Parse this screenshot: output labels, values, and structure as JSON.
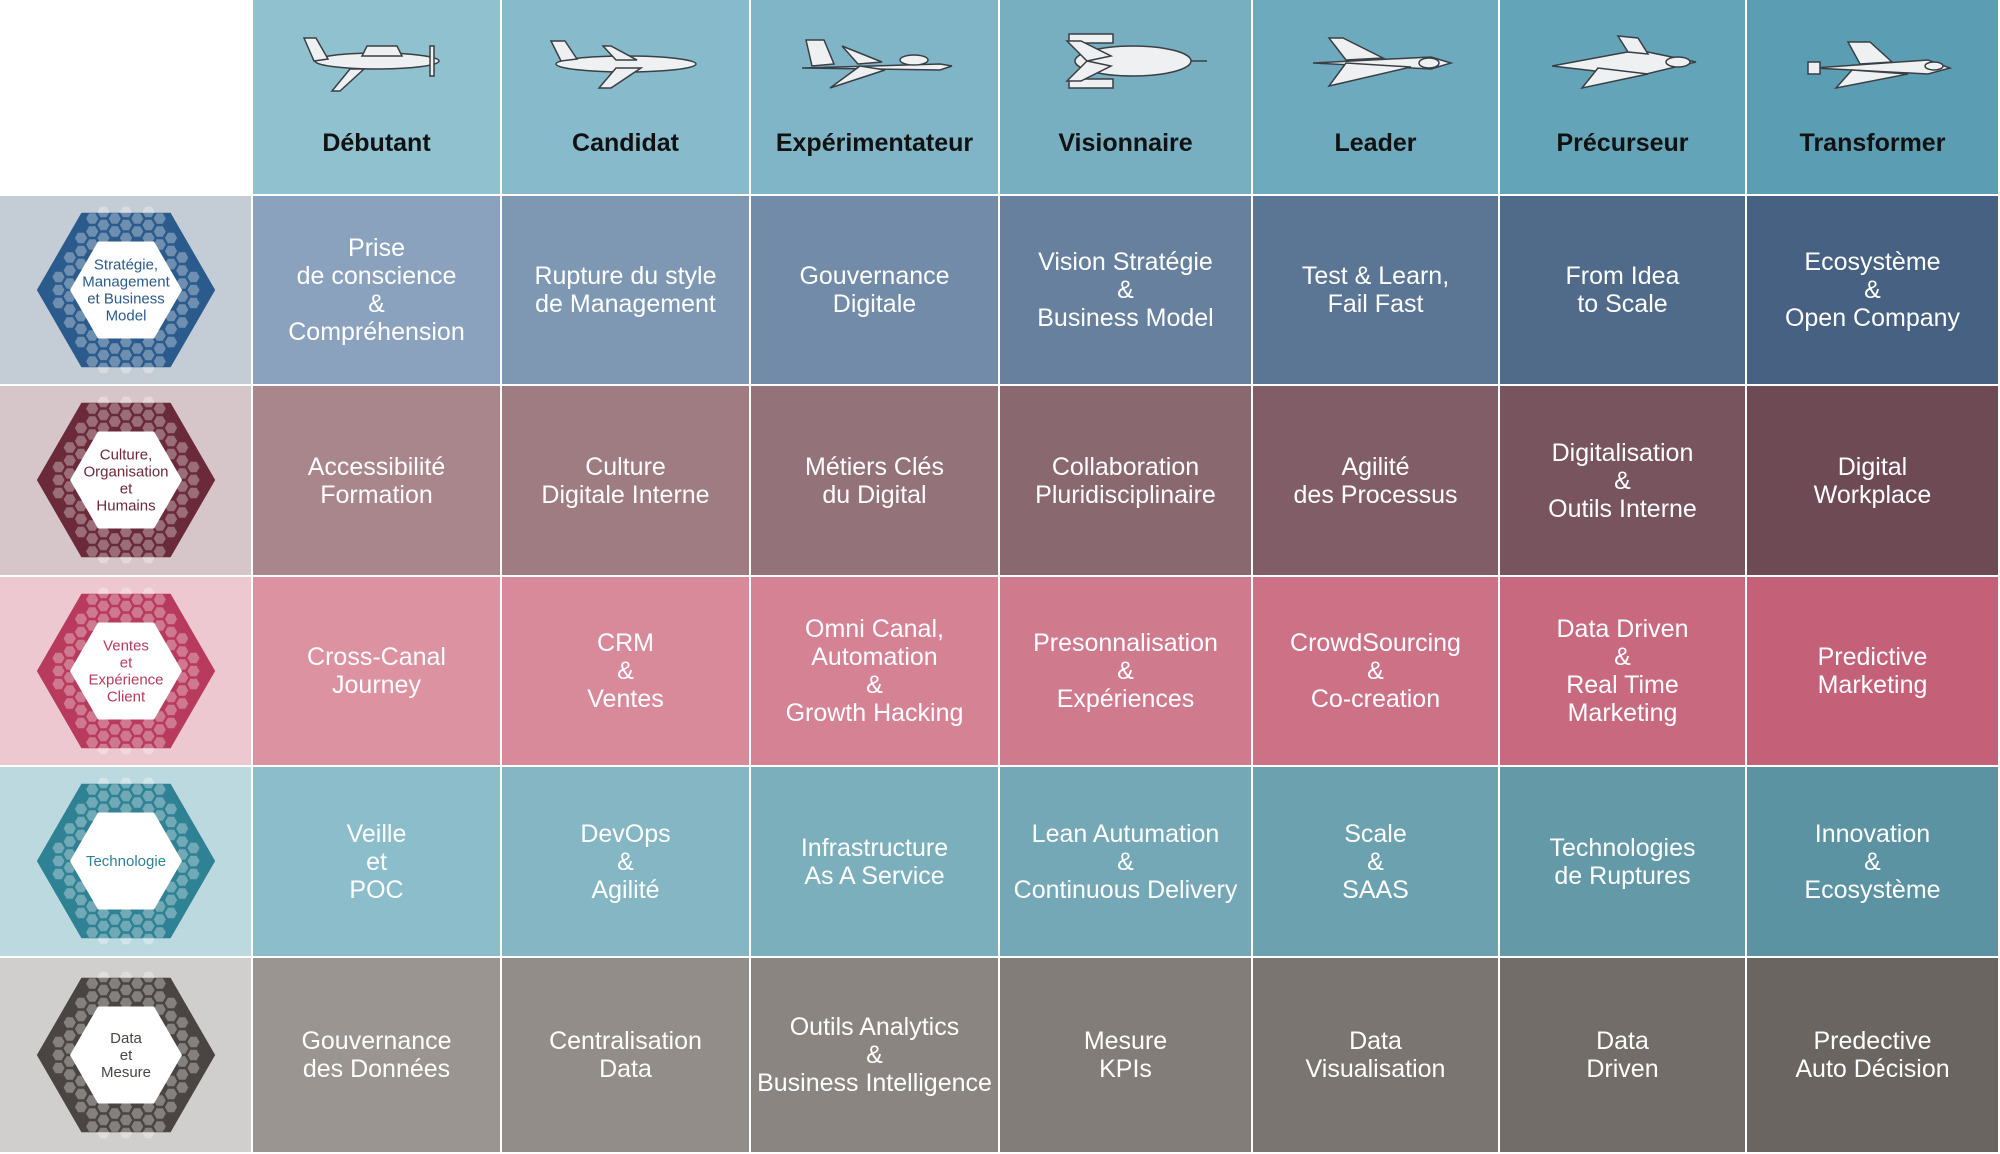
{
  "columns": [
    {
      "label": "Débutant",
      "icon": "light-aircraft-icon",
      "color": "#8fc1cf"
    },
    {
      "label": "Candidat",
      "icon": "airliner-icon",
      "color": "#87bbcb"
    },
    {
      "label": "Expérimentateur",
      "icon": "fighter-jet-icon",
      "color": "#7fb5c6"
    },
    {
      "label": "Visionnaire",
      "icon": "space-shuttle-stack-icon",
      "color": "#77afc1"
    },
    {
      "label": "Leader",
      "icon": "space-shuttle-icon",
      "color": "#6eaabd"
    },
    {
      "label": "Précurseur",
      "icon": "spaceplane-icon",
      "color": "#64a4b8"
    },
    {
      "label": "Transformer",
      "icon": "shuttle-orbiter-icon",
      "color": "#5b9eb3"
    }
  ],
  "rows": [
    {
      "label": "Stratégie,\nManagement\net Business\nModel",
      "label_bg": "#c4ccd6",
      "hex_color": "#2b5a8c",
      "colors": [
        "#8aa2bd",
        "#7e97b3",
        "#728ba8",
        "#66809e",
        "#5b7594",
        "#506b8a",
        "#466181"
      ],
      "cells": [
        "Prise\nde conscience\n&\nCompréhension",
        "Rupture du style\nde Management",
        "Gouvernance\nDigitale",
        "Vision Stratégie\n&\nBusiness Model",
        "Test & Learn,\nFail Fast",
        "From Idea\nto Scale",
        "Ecosystème\n&\nOpen Company"
      ]
    },
    {
      "label": "Culture,\nOrganisation\net\nHumains",
      "label_bg": "#d7c6c9",
      "hex_color": "#6a2a3a",
      "colors": [
        "#a8868b",
        "#9e7c82",
        "#947279",
        "#8a6870",
        "#815e67",
        "#77545e",
        "#6e4a55"
      ],
      "cells": [
        "Accessibilité\nFormation",
        "Culture\nDigitale Interne",
        "Métiers Clés\ndu Digital",
        "Collaboration\nPluridisciplinaire",
        "Agilité\ndes Processus",
        "Digitalisation\n&\nOutils Interne",
        "Digital\nWorkplace"
      ]
    },
    {
      "label": "Ventes\net\nExpérience\nClient",
      "label_bg": "#eec8d0",
      "hex_color": "#b83a5c",
      "colors": [
        "#dc92a1",
        "#d88a9b",
        "#d48294",
        "#d07a8d",
        "#cc7186",
        "#c8697f",
        "#c46078"
      ],
      "cells": [
        "Cross-Canal\nJourney",
        "CRM\n&\nVentes",
        "Omni Canal,\nAutomation\n&\nGrowth Hacking",
        "Presonnalisation\n&\nExpériences",
        "CrowdSourcing\n&\nCo-creation",
        "Data Driven\n&\nReal Time\nMarketing",
        "Predictive\nMarketing"
      ]
    },
    {
      "label": "Technologie",
      "label_bg": "#bcd9e0",
      "hex_color": "#2f8194",
      "colors": [
        "#8cbdca",
        "#84b6c3",
        "#7cafbc",
        "#74a8b6",
        "#6ca1af",
        "#649aa8",
        "#5c93a2"
      ],
      "cells": [
        "Veille\net\nPOC",
        "DevOps\n&\nAgilité",
        "Infrastructure\nAs A Service",
        "Lean Autumation\n&\nContinuous Delivery",
        "Scale\n&\nSAAS",
        "Technologies\nde Ruptures",
        "Innovation\n&\nEcosystème"
      ]
    },
    {
      "label": "Data\net\nMesure",
      "label_bg": "#d0cfcd",
      "hex_color": "#4a4542",
      "colors": [
        "#9a9590",
        "#928d88",
        "#8a8580",
        "#827d78",
        "#7a7570",
        "#726d68",
        "#6a6560"
      ],
      "cells": [
        "Gouvernance\ndes Données",
        "Centralisation\nData",
        "Outils Analytics\n&\nBusiness Intelligence",
        "Mesure\nKPIs",
        "Data\nVisualisation",
        "Data\nDriven",
        "Predective\nAuto Décision"
      ]
    }
  ]
}
